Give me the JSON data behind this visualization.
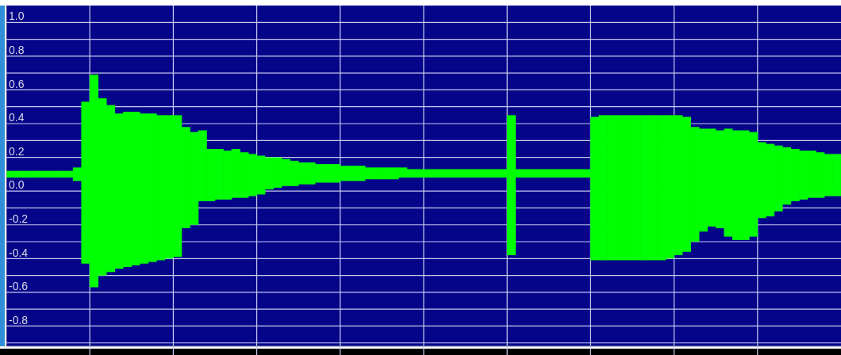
{
  "chart_data": {
    "type": "bar",
    "categories": [
      null,
      null,
      null,
      null,
      null,
      null,
      null,
      null,
      null,
      null,
      null,
      null,
      null,
      null,
      null,
      null,
      null,
      null,
      null,
      null,
      null,
      null,
      null,
      null,
      null,
      null,
      null,
      null,
      null,
      null,
      null,
      null,
      null,
      null,
      null,
      null,
      null,
      null,
      null,
      null,
      null,
      null,
      null,
      null,
      null,
      null,
      null,
      null,
      null,
      null,
      null,
      null,
      null,
      null,
      null,
      null,
      null,
      null,
      null,
      null,
      null,
      null,
      null,
      null,
      null,
      null,
      null,
      null,
      null,
      null,
      null,
      null,
      null,
      null,
      null,
      null,
      null,
      null,
      null,
      null,
      null,
      null,
      null,
      null,
      null,
      null,
      null,
      null,
      null,
      null,
      null,
      null,
      null,
      null,
      null,
      null,
      null,
      null,
      null,
      null
    ],
    "color": "#00ff00",
    "values": [
      0.04,
      0.04,
      0.04,
      0.04,
      0.04,
      0.04,
      0.04,
      0.04,
      0.08,
      0.96,
      1.26,
      1.05,
      0.99,
      0.92,
      0.92,
      0.91,
      0.89,
      0.88,
      0.86,
      0.85,
      0.84,
      0.6,
      0.55,
      0.42,
      0.31,
      0.3,
      0.29,
      0.29,
      0.27,
      0.25,
      0.23,
      0.19,
      0.18,
      0.16,
      0.15,
      0.13,
      0.13,
      0.11,
      0.11,
      0.11,
      0.09,
      0.09,
      0.09,
      0.07,
      0.07,
      0.07,
      0.07,
      0.06,
      0.05,
      0.05,
      0.05,
      0.05,
      0.05,
      0.05,
      0.05,
      0.05,
      0.05,
      0.05,
      0.05,
      0.05,
      0.83,
      0.05,
      0.05,
      0.05,
      0.05,
      0.05,
      0.05,
      0.05,
      0.05,
      0.05,
      0.85,
      0.86,
      0.86,
      0.86,
      0.86,
      0.86,
      0.86,
      0.86,
      0.86,
      0.85,
      0.83,
      0.8,
      0.68,
      0.61,
      0.58,
      0.58,
      0.64,
      0.65,
      0.65,
      0.62,
      0.45,
      0.43,
      0.39,
      0.34,
      0.31,
      0.29,
      0.28,
      0.27,
      0.25,
      0.25
    ],
    "base": [
      0.08,
      0.08,
      0.08,
      0.08,
      0.08,
      0.08,
      0.08,
      0.08,
      0.06,
      -0.43,
      -0.57,
      -0.5,
      -0.48,
      -0.46,
      -0.45,
      -0.44,
      -0.43,
      -0.42,
      -0.41,
      -0.4,
      -0.39,
      -0.22,
      -0.2,
      -0.06,
      -0.06,
      -0.05,
      -0.05,
      -0.04,
      -0.04,
      -0.03,
      -0.02,
      0.01,
      0.02,
      0.03,
      0.03,
      0.04,
      0.04,
      0.05,
      0.05,
      0.05,
      0.06,
      0.06,
      0.06,
      0.07,
      0.07,
      0.07,
      0.07,
      0.08,
      0.08,
      0.08,
      0.08,
      0.08,
      0.08,
      0.08,
      0.08,
      0.08,
      0.08,
      0.08,
      0.08,
      0.08,
      -0.38,
      0.08,
      0.08,
      0.08,
      0.08,
      0.08,
      0.08,
      0.08,
      0.08,
      0.08,
      -0.41,
      -0.41,
      -0.41,
      -0.41,
      -0.41,
      -0.41,
      -0.41,
      -0.41,
      -0.41,
      -0.4,
      -0.38,
      -0.36,
      -0.3,
      -0.24,
      -0.21,
      -0.22,
      -0.27,
      -0.29,
      -0.29,
      -0.27,
      -0.16,
      -0.15,
      -0.12,
      -0.08,
      -0.06,
      -0.05,
      -0.04,
      -0.04,
      -0.03,
      -0.03
    ],
    "ylim": [
      -0.92,
      1.1
    ],
    "yticks": [
      {
        "value": -0.9,
        "label": null
      },
      -0.8,
      {
        "value": -0.7,
        "label": null
      },
      -0.6,
      {
        "value": -0.5,
        "label": null
      },
      -0.4,
      {
        "value": -0.3,
        "label": null
      },
      -0.2,
      {
        "value": -0.1,
        "label": null
      },
      {
        "value": 0,
        "label": "0.0"
      },
      0.2,
      {
        "value": 0.3,
        "label": null
      },
      0.4,
      {
        "value": 0.5,
        "label": null
      },
      0.6,
      {
        "value": 0.7,
        "label": null
      },
      0.8,
      {
        "value": 0.9,
        "label": null
      },
      {
        "value": 1,
        "label": "1.0"
      }
    ],
    "grid": true,
    "tick_labels": "y"
  }
}
